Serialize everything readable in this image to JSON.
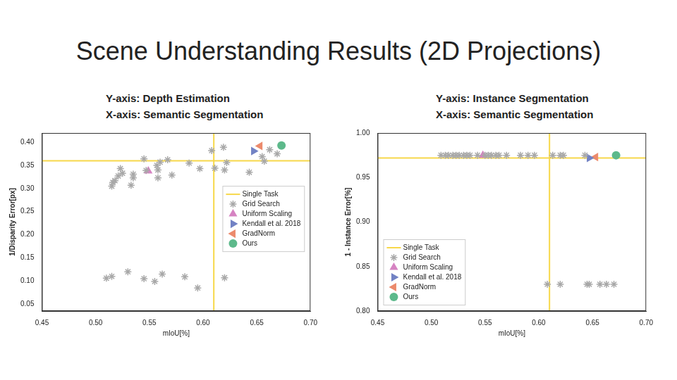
{
  "slide_title": "Scene Understanding Results (2D Projections)",
  "chart_data": [
    {
      "type": "scatter",
      "title": "Y-axis: Depth Estimation",
      "subtitle": "X-axis: Semantic Segmentation",
      "x_label": "mIoU[%]",
      "y_label": "1/Disparity Error[px]",
      "xlim": [
        0.45,
        0.7
      ],
      "xticks": [
        0.45,
        {
          "value": 0.5,
          "label": "0.50"
        },
        0.55,
        {
          "value": 0.6,
          "label": "0.60"
        },
        0.65,
        {
          "value": 0.7,
          "label": "0.70"
        }
      ],
      "ylim": [
        0.035,
        0.42
      ],
      "yticks": [
        0.05,
        {
          "value": 0.1,
          "label": "0.10"
        },
        0.15,
        {
          "value": 0.2,
          "label": "0.20"
        },
        0.25,
        {
          "value": 0.3,
          "label": "0.30"
        },
        0.35,
        {
          "value": 0.4,
          "label": "0.40"
        }
      ],
      "grid": false,
      "legend": "lower right",
      "series": [
        {
          "name": "Single Task",
          "type": "crosshair",
          "color": "#f7d84a",
          "x": [
            0.61
          ],
          "values": [
            0.36
          ]
        },
        {
          "name": "Grid Search",
          "marker": "star",
          "color": "#a8a8a8",
          "x": [
            0.515,
            0.516,
            0.518,
            0.521,
            0.523,
            0.525,
            0.533,
            0.535,
            0.535,
            0.545,
            0.547,
            0.557,
            0.558,
            0.558,
            0.56,
            0.567,
            0.571,
            0.587,
            0.597,
            0.608,
            0.611,
            0.619,
            0.62,
            0.622,
            0.643,
            0.655,
            0.657,
            0.662,
            0.669,
            0.51,
            0.515,
            0.53,
            0.545,
            0.555,
            0.562,
            0.583,
            0.595,
            0.62
          ],
          "values": [
            0.305,
            0.313,
            0.317,
            0.327,
            0.343,
            0.333,
            0.307,
            0.331,
            0.323,
            0.364,
            0.339,
            0.35,
            0.323,
            0.34,
            0.357,
            0.362,
            0.329,
            0.355,
            0.343,
            0.382,
            0.344,
            0.389,
            0.34,
            0.356,
            0.335,
            0.369,
            0.359,
            0.384,
            0.375,
            0.106,
            0.11,
            0.12,
            0.105,
            0.099,
            0.115,
            0.109,
            0.085,
            0.107
          ]
        },
        {
          "name": "Uniform Scaling",
          "marker": "triangle",
          "color": "#d683c2",
          "x": [
            0.549
          ],
          "values": [
            0.338
          ]
        },
        {
          "name": "Kendall et al. 2018",
          "marker": "triangle_right",
          "color": "#7282c4",
          "x": [
            0.647
          ],
          "values": [
            0.381
          ]
        },
        {
          "name": "GradNorm",
          "marker": "triangle_left",
          "color": "#ec8a6c",
          "x": [
            0.653
          ],
          "values": [
            0.392
          ]
        },
        {
          "name": "Ours",
          "marker": "circle",
          "color": "#5db98b",
          "x": [
            0.673
          ],
          "values": [
            0.393
          ]
        }
      ]
    },
    {
      "type": "scatter",
      "title": "Y-axis: Instance Segmentation",
      "subtitle": "X-axis: Semantic Segmentation",
      "x_label": "mIoU[%]",
      "y_label": "1 - Instance Error[%]",
      "xlim": [
        0.45,
        0.7
      ],
      "xticks": [
        0.45,
        {
          "value": 0.5,
          "label": "0.50"
        },
        0.55,
        {
          "value": 0.6,
          "label": "0.60"
        },
        0.65,
        {
          "value": 0.7,
          "label": "0.70"
        }
      ],
      "ylim": [
        0.8,
        1.0
      ],
      "yticks": [
        {
          "value": 0.8,
          "label": "0.80"
        },
        0.85,
        {
          "value": 0.9,
          "label": "0.90"
        },
        0.95,
        {
          "value": 1.0,
          "label": "1.00"
        }
      ],
      "grid": false,
      "legend": "lower left",
      "series": [
        {
          "name": "Single Task",
          "type": "crosshair",
          "color": "#f7d84a",
          "x": [
            0.61
          ],
          "values": [
            0.972
          ]
        },
        {
          "name": "Grid Search",
          "marker": "star",
          "color": "#a8a8a8",
          "x": [
            0.509,
            0.513,
            0.516,
            0.52,
            0.523,
            0.526,
            0.53,
            0.533,
            0.536,
            0.543,
            0.55,
            0.553,
            0.556,
            0.56,
            0.563,
            0.57,
            0.583,
            0.59,
            0.596,
            0.613,
            0.62,
            0.623,
            0.643,
            0.608,
            0.62,
            0.645,
            0.647,
            0.657,
            0.663,
            0.67
          ],
          "values": [
            0.975,
            0.975,
            0.975,
            0.975,
            0.975,
            0.975,
            0.975,
            0.975,
            0.975,
            0.975,
            0.975,
            0.975,
            0.975,
            0.975,
            0.975,
            0.975,
            0.975,
            0.975,
            0.975,
            0.975,
            0.975,
            0.975,
            0.975,
            0.83,
            0.83,
            0.83,
            0.83,
            0.83,
            0.83,
            0.83
          ]
        },
        {
          "name": "Uniform Scaling",
          "marker": "triangle",
          "color": "#d683c2",
          "x": [
            0.548
          ],
          "values": [
            0.975
          ]
        },
        {
          "name": "Kendall et al. 2018",
          "marker": "triangle_right",
          "color": "#7282c4",
          "x": [
            0.647
          ],
          "values": [
            0.972
          ]
        },
        {
          "name": "GradNorm",
          "marker": "triangle_left",
          "color": "#ec8a6c",
          "x": [
            0.653
          ],
          "values": [
            0.973
          ]
        },
        {
          "name": "Ours",
          "marker": "circle",
          "color": "#5db98b",
          "x": [
            0.672
          ],
          "values": [
            0.975
          ]
        }
      ]
    }
  ]
}
